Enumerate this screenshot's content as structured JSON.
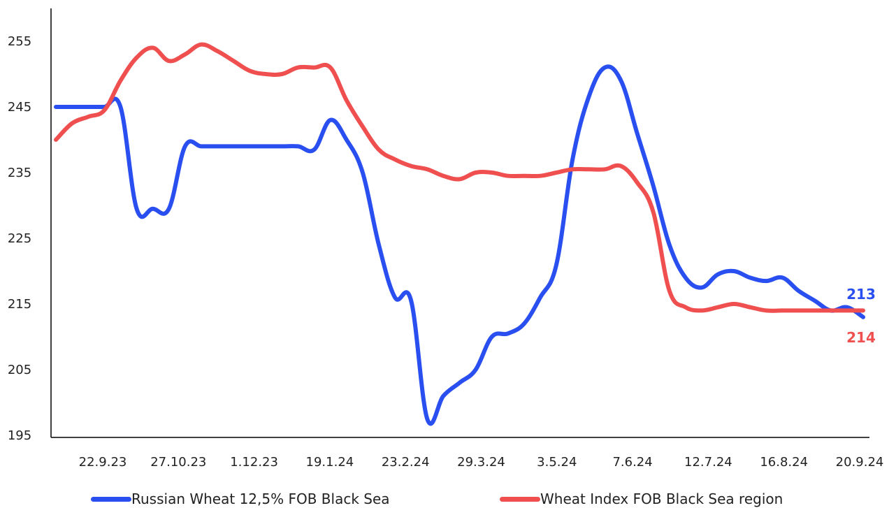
{
  "chart_data": {
    "type": "line",
    "title": "",
    "xlabel": "",
    "ylabel": "",
    "ylim": [
      195,
      258
    ],
    "y_ticks": [
      195,
      205,
      215,
      225,
      235,
      245,
      255
    ],
    "x_tick_labels": [
      "22.9.23",
      "27.10.23",
      "1.12.23",
      "19.1.24",
      "23.2.24",
      "29.3.24",
      "3.5.24",
      "7.6.24",
      "12.7.24",
      "16.8.24",
      "20.9.24"
    ],
    "grid": false,
    "legend_position": "bottom",
    "series": [
      {
        "name": "Russian Wheat 12,5% FOB Black Sea",
        "color": "#2a4ff0",
        "end_label": "213",
        "values": [
          245,
          245,
          245,
          245,
          245,
          229.5,
          229.5,
          229.5,
          239,
          239,
          239,
          239,
          239,
          239,
          239,
          239,
          238.5,
          243,
          240,
          235,
          224,
          216,
          215.5,
          197.5,
          201,
          203,
          205,
          210,
          210.5,
          212,
          216,
          221,
          237,
          246.5,
          251,
          249,
          241,
          233,
          224,
          219,
          217.5,
          219.5,
          220,
          219,
          218.5,
          219,
          217,
          215.5,
          214,
          214.5,
          213
        ]
      },
      {
        "name": "Wheat Index FOB Black Sea region",
        "color": "#f04f4f",
        "end_label": "214",
        "values": [
          240,
          242.5,
          243.5,
          244.5,
          249,
          252.5,
          254,
          252,
          253,
          254.5,
          253.5,
          252,
          250.5,
          250,
          250,
          251,
          251,
          251,
          246,
          242,
          238.5,
          237,
          236,
          235.5,
          234.5,
          234,
          235,
          235,
          234.5,
          234.5,
          234.5,
          235,
          235.5,
          235.5,
          235.5,
          236,
          233.5,
          229,
          217,
          214.5,
          214,
          214.5,
          215,
          214.5,
          214,
          214,
          214,
          214,
          214,
          214,
          214
        ]
      }
    ]
  }
}
